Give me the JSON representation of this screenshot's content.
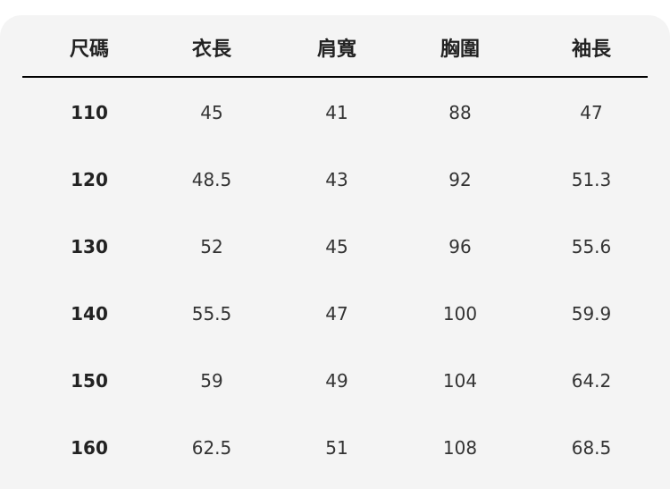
{
  "table": {
    "headers": [
      "尺碼",
      "衣長",
      "肩寬",
      "胸圍",
      "袖長"
    ],
    "rows": [
      [
        "110",
        "45",
        "41",
        "88",
        "47"
      ],
      [
        "120",
        "48.5",
        "43",
        "92",
        "51.3"
      ],
      [
        "130",
        "52",
        "45",
        "96",
        "55.6"
      ],
      [
        "140",
        "55.5",
        "47",
        "100",
        "59.9"
      ],
      [
        "150",
        "59",
        "49",
        "104",
        "64.2"
      ],
      [
        "160",
        "62.5",
        "51",
        "108",
        "68.5"
      ]
    ]
  }
}
